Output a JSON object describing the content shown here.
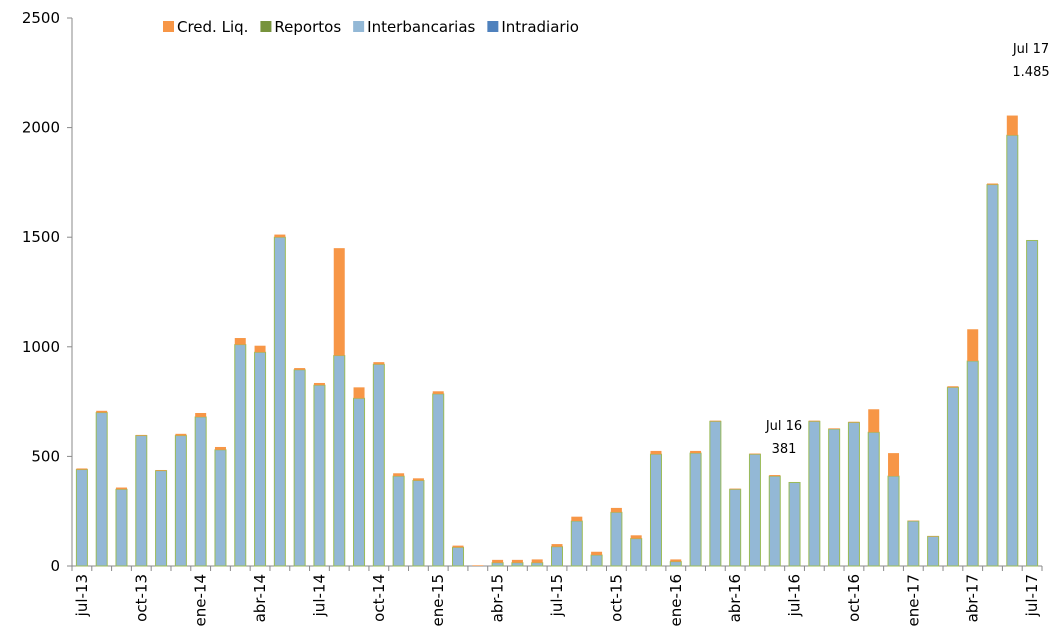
{
  "chart_data": {
    "type": "bar",
    "stacked": true,
    "categories": [
      "jul-13",
      null,
      null,
      "oct-13",
      null,
      null,
      "ene-14",
      null,
      null,
      "abr-14",
      null,
      null,
      "jul-14",
      null,
      null,
      "oct-14",
      null,
      null,
      "ene-15",
      null,
      null,
      "abr-15",
      null,
      null,
      "jul-15",
      null,
      null,
      "oct-15",
      null,
      null,
      "ene-16",
      null,
      null,
      "abr-16",
      null,
      null,
      "jul-16",
      null,
      null,
      "oct-16",
      null,
      null,
      "ene-17",
      null,
      null,
      "abr-17",
      null,
      null,
      "jul-17"
    ],
    "series": [
      {
        "name": "Intradiario",
        "color": "#4f81bd",
        "values": [
          0,
          0,
          0,
          0,
          0,
          0,
          0,
          0,
          0,
          0,
          0,
          0,
          0,
          0,
          0,
          0,
          0,
          0,
          0,
          0,
          0,
          0,
          0,
          0,
          0,
          0,
          0,
          0,
          0,
          0,
          0,
          0,
          0,
          0,
          0,
          0,
          0,
          0,
          0,
          0,
          0,
          0,
          0,
          0,
          0,
          0,
          0,
          0,
          0
        ]
      },
      {
        "name": "Interbancarias",
        "color": "#93b8d6",
        "values": [
          440,
          700,
          350,
          595,
          435,
          595,
          680,
          530,
          1010,
          975,
          1500,
          895,
          825,
          960,
          765,
          920,
          410,
          390,
          785,
          85,
          0,
          15,
          15,
          15,
          88,
          205,
          50,
          245,
          125,
          510,
          20,
          515,
          660,
          350,
          510,
          410,
          381,
          660,
          625,
          655,
          610,
          410,
          205,
          135,
          815,
          935,
          1740,
          1965,
          1485
        ]
      },
      {
        "name": "Reportos",
        "color": "#77933c",
        "values": [
          0,
          0,
          0,
          0,
          0,
          0,
          0,
          0,
          0,
          0,
          0,
          0,
          0,
          0,
          0,
          0,
          0,
          0,
          0,
          0,
          0,
          0,
          0,
          0,
          0,
          0,
          0,
          0,
          0,
          0,
          0,
          0,
          0,
          0,
          0,
          0,
          0,
          0,
          0,
          0,
          0,
          0,
          0,
          0,
          0,
          0,
          0,
          0,
          0
        ]
      },
      {
        "name": "Cred. Liq.",
        "color": "#f79646",
        "values": [
          5,
          8,
          8,
          3,
          3,
          8,
          18,
          13,
          30,
          30,
          12,
          8,
          10,
          490,
          50,
          10,
          13,
          10,
          12,
          8,
          3,
          13,
          13,
          15,
          12,
          20,
          15,
          20,
          15,
          15,
          10,
          10,
          3,
          3,
          3,
          5,
          0,
          3,
          3,
          3,
          105,
          105,
          2,
          2,
          5,
          145,
          5,
          90,
          0
        ]
      }
    ],
    "annotations": [
      "Jul 16",
      "381",
      "Jul 17",
      "1.485"
    ],
    "ylim": [
      0,
      2500
    ],
    "yticks": [
      0,
      500,
      1000,
      1500,
      2000,
      2500
    ],
    "grid": false
  }
}
